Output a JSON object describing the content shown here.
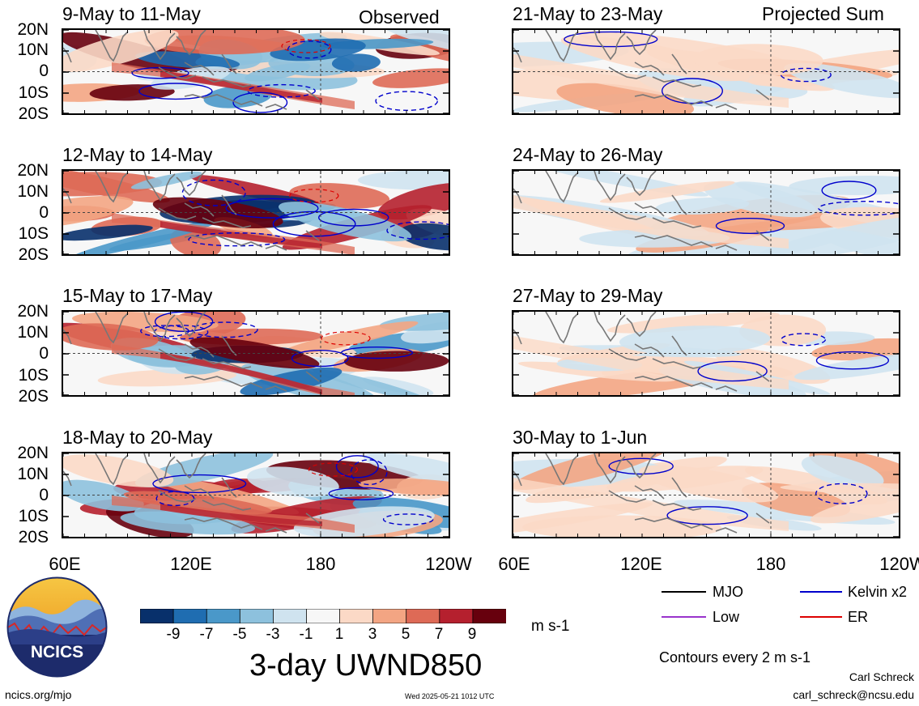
{
  "header": {
    "left_tag": "Observed",
    "right_tag": "Projected Sum"
  },
  "panels": {
    "observed": [
      "9-May to 11-May",
      "12-May to 14-May",
      "15-May to 17-May",
      "18-May to 20-May"
    ],
    "projected": [
      "21-May to 23-May",
      "24-May to 26-May",
      "27-May to 29-May",
      "30-May to 1-Jun"
    ]
  },
  "axes": {
    "lat_ticks": [
      "20N",
      "10N",
      "0",
      "10S",
      "20S"
    ],
    "lon_ticks": [
      "60E",
      "120E",
      "180",
      "120W"
    ]
  },
  "colorbar": {
    "labels": [
      "-9",
      "-7",
      "-5",
      "-3",
      "-1",
      "1",
      "3",
      "5",
      "7",
      "9"
    ],
    "units": "m s-1",
    "colors": [
      "#08306b",
      "#1f6db1",
      "#4a98c9",
      "#8dc1dd",
      "#cfe3ef",
      "#f7f7f7",
      "#fbd9c6",
      "#f3a583",
      "#de6a56",
      "#b5202e",
      "#67000d"
    ]
  },
  "title": "3-day UWND850",
  "legend": {
    "items": [
      {
        "label": "MJO",
        "color": "#000000"
      },
      {
        "label": "Kelvin x2",
        "color": "#0000cc"
      },
      {
        "label": "Low",
        "color": "#9933cc"
      },
      {
        "label": "ER",
        "color": "#dd0000"
      }
    ],
    "contour_note": "Contours every 2 m s-1"
  },
  "footer": {
    "left": "ncics.org/mjo",
    "timestamp": "Wed 2025-05-21 1012 UTC",
    "author": "Carl Schreck",
    "email": "carl_schreck@ncsu.edu"
  },
  "logo": {
    "text": "NCICS"
  }
}
